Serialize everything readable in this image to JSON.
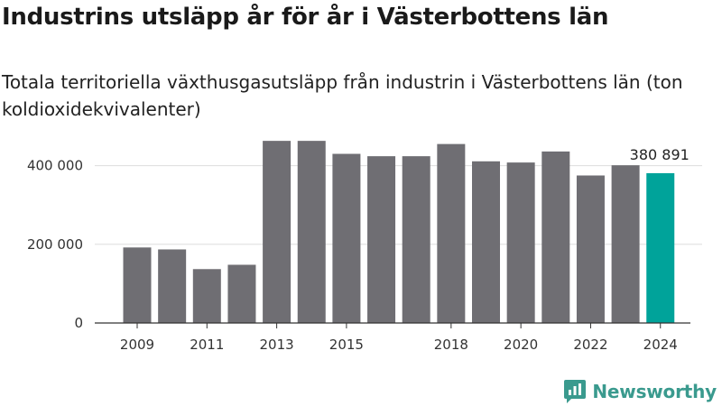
{
  "title": "Industrins utsläpp år för år i Västerbottens län",
  "subtitle": "Totala territoriella växthusgasutsläpp från industrin i Västerbottens län (ton koldioxidekvivalenter)",
  "brand": "Newsworthy",
  "colors": {
    "bar": "#6f6e73",
    "highlight": "#00a39a",
    "grid": "#dddddd",
    "axis": "#333333",
    "brand": "#3a9a8e"
  },
  "chart_data": {
    "type": "bar",
    "categories": [
      "2009",
      "2010",
      "2011",
      "2012",
      "2013",
      "2014",
      "2015",
      "2016",
      "2017",
      "2018",
      "2019",
      "2020",
      "2021",
      "2022",
      "2023",
      "2024"
    ],
    "values": [
      192000,
      187000,
      137000,
      148000,
      463000,
      463000,
      430000,
      424000,
      424000,
      455000,
      411000,
      408000,
      436000,
      375000,
      401000,
      380891
    ],
    "x_tick_labels": [
      "2009",
      "2011",
      "2013",
      "2015",
      "2018",
      "2020",
      "2022",
      "2024"
    ],
    "y_ticks": [
      0,
      200000,
      400000
    ],
    "y_tick_labels": [
      "0",
      "200 000",
      "400 000"
    ],
    "ylim": [
      0,
      500000
    ],
    "highlight_index": 15,
    "data_label": {
      "index": 15,
      "text": "380 891"
    },
    "grid": true,
    "legend": "none",
    "xlabel": "",
    "ylabel": ""
  }
}
